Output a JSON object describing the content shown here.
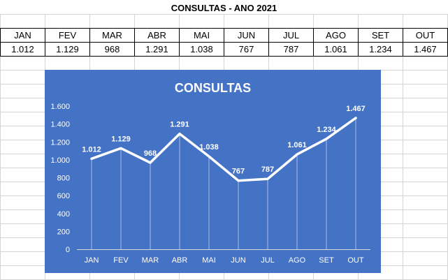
{
  "sheet": {
    "title": "CONSULTAS - ANO 2021"
  },
  "table": {
    "headers": [
      "JAN",
      "FEV",
      "MAR",
      "ABR",
      "MAI",
      "JUN",
      "JUL",
      "AGO",
      "SET",
      "OUT"
    ],
    "values": [
      "1.012",
      "1.129",
      "968",
      "1.291",
      "1.038",
      "767",
      "787",
      "1.061",
      "1.234",
      "1.467"
    ]
  },
  "colors": {
    "chart_background": "#4472C4",
    "line": "#FFFFFF",
    "text": "#FFFFFF"
  },
  "chart_data": {
    "type": "line",
    "title": "CONSULTAS",
    "categories": [
      "JAN",
      "FEV",
      "MAR",
      "ABR",
      "MAI",
      "JUN",
      "JUL",
      "AGO",
      "SET",
      "OUT"
    ],
    "series": [
      {
        "values": [
          1012,
          1129,
          968,
          1291,
          1038,
          767,
          787,
          1061,
          1234,
          1467
        ],
        "labels": [
          "1.012",
          "1.129",
          "968",
          "1.291",
          "1.038",
          "767",
          "787",
          "1.061",
          "1.234",
          "1.467"
        ]
      }
    ],
    "ylim": [
      0,
      1600
    ],
    "yticks": [
      0,
      200,
      400,
      600,
      800,
      1000,
      1200,
      1400,
      1600
    ],
    "ytick_labels": [
      "0",
      "200",
      "400",
      "600",
      "800",
      "1.000",
      "1.200",
      "1.400",
      "1.600"
    ],
    "xlabel": "",
    "ylabel": "",
    "grid": "vertical drop lines",
    "legend": "none"
  }
}
